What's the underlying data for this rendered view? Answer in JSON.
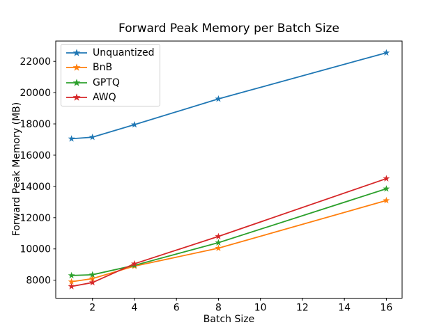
{
  "chart_data": {
    "type": "line",
    "title": "Forward Peak Memory per Batch Size",
    "xlabel": "Batch Size",
    "ylabel": "Forward Peak Memory (MB)",
    "x": [
      1,
      2,
      4,
      8,
      16
    ],
    "series": [
      {
        "name": "Unquantized",
        "color": "#1f77b4",
        "marker": "star",
        "values": [
          17050,
          17150,
          17950,
          19600,
          22550
        ]
      },
      {
        "name": "BnB",
        "color": "#ff7f0e",
        "marker": "star",
        "values": [
          7900,
          8100,
          8900,
          10050,
          13100
        ]
      },
      {
        "name": "GPTQ",
        "color": "#2ca02c",
        "marker": "star",
        "values": [
          8300,
          8350,
          8950,
          10400,
          13850
        ]
      },
      {
        "name": "AWQ",
        "color": "#d62728",
        "marker": "star",
        "values": [
          7600,
          7850,
          9050,
          10800,
          14500
        ]
      }
    ],
    "xlim": [
      0.25,
      16.75
    ],
    "ylim": [
      6850,
      23300
    ],
    "xticks": [
      2,
      4,
      6,
      8,
      10,
      12,
      14,
      16
    ],
    "yticks": [
      8000,
      10000,
      12000,
      14000,
      16000,
      18000,
      20000,
      22000
    ],
    "grid": false,
    "legend_position": "upper left",
    "axis_color": "#000000"
  }
}
